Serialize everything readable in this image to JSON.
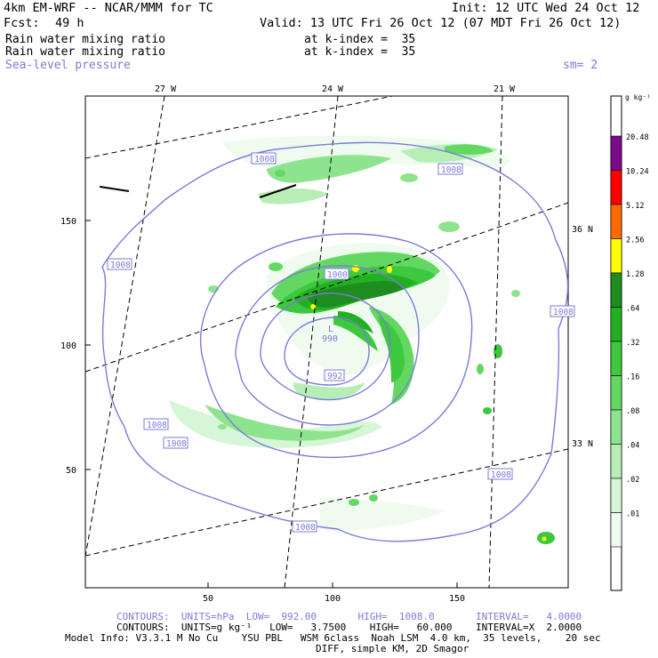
{
  "header": {
    "model": "4km EM-WRF -- NCAR/MMM for TC",
    "init": "Init: 12 UTC Wed 24 Oct 12",
    "fcst_label": "Fcst:",
    "fcst_value": "49 h",
    "valid": "Valid: 13 UTC Fri 26 Oct 12 (07 MDT Fri 26 Oct 12)",
    "field1_name": "Rain water mixing ratio",
    "field1_level": "at k-index =  35",
    "field2_name": "Rain water mixing ratio",
    "field2_level": "at k-index =  35",
    "field3_name": "Sea-level pressure",
    "smoothing": "sm= 2"
  },
  "map": {
    "lon_labels": [
      "27 W",
      "24 W",
      "21 W"
    ],
    "lat_labels": [
      "36 N",
      "33 N"
    ],
    "y_ticks": [
      "150",
      "100",
      "50"
    ],
    "x_ticks": [
      "50",
      "100",
      "150"
    ],
    "low_marker": "L",
    "low_value": "990",
    "isobar_labels": [
      "1008",
      "1008",
      "1008",
      "1008",
      "1008",
      "1008",
      "1008",
      "1008",
      "992",
      "1000"
    ]
  },
  "colorbar": {
    "unit": "g kg⁻¹",
    "levels": [
      "20.48",
      "10.24",
      "5.12",
      "2.56",
      "1.28",
      ".64",
      ".32",
      ".16",
      ".08",
      ".04",
      ".02",
      ".01"
    ],
    "colors": [
      "#7a0a8a",
      "#ff0000",
      "#ff6a00",
      "#ffff00",
      "#1e8c1e",
      "#22b022",
      "#3ec83e",
      "#62d862",
      "#8ee48e",
      "#b6eeb6",
      "#d7f6d7",
      "#eefbee"
    ]
  },
  "footer": {
    "line1": "CONTOURS:  UNITS=hPa  LOW=  992.00       HIGH=  1008.0       INTERVAL=   4.0000",
    "line2": "CONTOURS:  UNITS=g kg⁻¹   LOW=   3.7500    HIGH=   60.000    INTERVAL=X  2.0000",
    "line3": "Model Info: V3.3.1 M No Cu    YSU PBL   WSM 6class  Noah LSM  4.0 km,  35 levels,    20 sec",
    "line4": "DIFF, simple KM, 2D Smagor"
  },
  "colors": {
    "isobar": "#7b7bd9",
    "grid": "#000000"
  }
}
